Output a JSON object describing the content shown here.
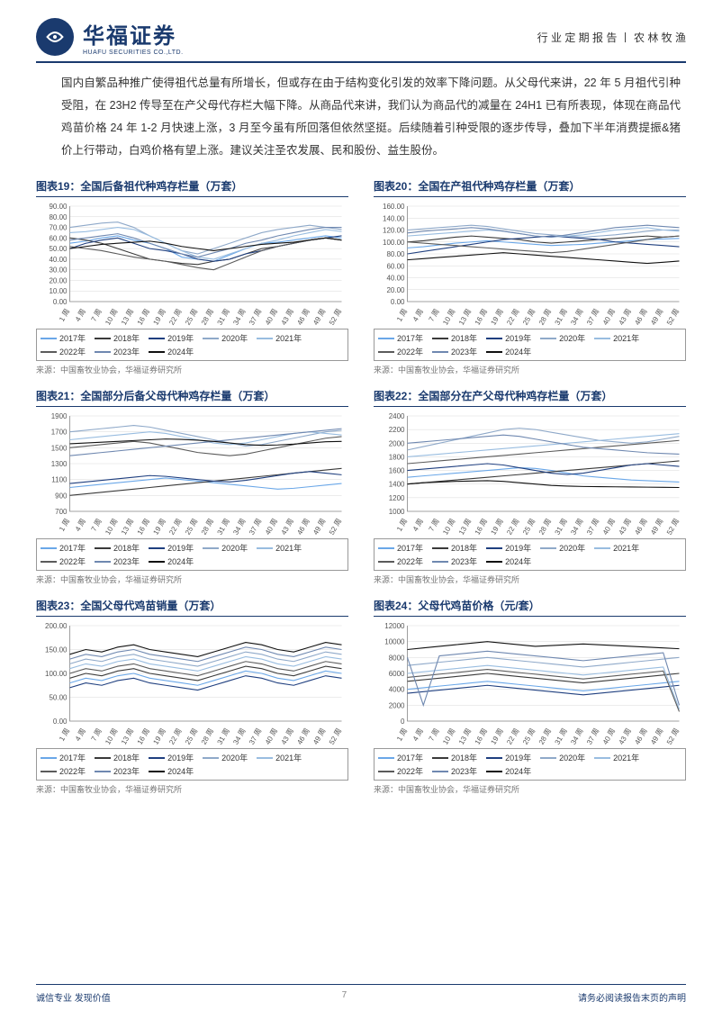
{
  "header": {
    "logo_cn": "华福证券",
    "logo_en": "HUAFU SECURITIES CO.,LTD.",
    "right": "行 业 定 期 报 告  丨  农 林 牧 渔"
  },
  "intro": "国内自繁品种推广使得祖代总量有所增长，但或存在由于结构变化引发的效率下降问题。从父母代来讲，22 年 5 月祖代引种受阻，在 23H2 传导至在产父母代存栏大幅下降。从商品代来讲，我们认为商品代的减量在 24H1 已有所表现，体现在商品代鸡苗价格 24 年 1-2 月快速上涨，3 月至今虽有所回落但依然坚挺。后续随着引种受限的逐步传导，叠加下半年消费提振&猪价上行带动，白鸡价格有望上涨。建议关注圣农发展、民和股份、益生股份。",
  "legend_years": [
    "2017年",
    "2018年",
    "2019年",
    "2020年",
    "2021年",
    "2022年",
    "2023年",
    "2024年"
  ],
  "legend_colors": [
    "#6aa7e8",
    "#3a3a3a",
    "#1f3f7f",
    "#8fa9c9",
    "#99bde0",
    "#5b5b5b",
    "#6f88b0",
    "#111111"
  ],
  "x_ticks": [
    "1 周",
    "4 周",
    "7 周",
    "10 周",
    "13 周",
    "16 周",
    "19 周",
    "22 周",
    "25 周",
    "28 周",
    "31 周",
    "34 周",
    "37 周",
    "40 周",
    "43 周",
    "46 周",
    "49 周",
    "52 周"
  ],
  "source_text": "来源：中国畜牧业协会，华福证券研究所",
  "charts": [
    {
      "title": "图表19：全国后备祖代种鸡存栏量（万套）",
      "ymin": 0,
      "ymax": 90,
      "ystep": 10,
      "series": [
        [
          55,
          57,
          60,
          62,
          58,
          55,
          50,
          42,
          40,
          38,
          44,
          50,
          55,
          56,
          58,
          60,
          62,
          60
        ],
        [
          60,
          58,
          55,
          50,
          45,
          40,
          38,
          36,
          35,
          38,
          40,
          45,
          50,
          52,
          55,
          58,
          60,
          58
        ],
        [
          50,
          55,
          58,
          60,
          55,
          50,
          48,
          45,
          40,
          38,
          40,
          45,
          48,
          52,
          55,
          58,
          60,
          62
        ],
        [
          70,
          72,
          74,
          75,
          70,
          62,
          55,
          48,
          45,
          50,
          55,
          60,
          65,
          68,
          70,
          72,
          70,
          68
        ],
        [
          65,
          66,
          68,
          70,
          68,
          62,
          55,
          48,
          42,
          40,
          45,
          50,
          55,
          58,
          62,
          65,
          68,
          66
        ],
        [
          52,
          50,
          48,
          45,
          42,
          40,
          38,
          35,
          32,
          30,
          36,
          42,
          48,
          52,
          55,
          58,
          60,
          58
        ],
        [
          58,
          60,
          62,
          64,
          60,
          55,
          50,
          45,
          42,
          46,
          50,
          55,
          58,
          62,
          65,
          68,
          70,
          70
        ],
        [
          50,
          52,
          54,
          55,
          56,
          57,
          55,
          52,
          50,
          48,
          50,
          52,
          54,
          55,
          56,
          58,
          60,
          58
        ]
      ]
    },
    {
      "title": "图表20：全国在产祖代种鸡存栏量（万套）",
      "ymin": 0,
      "ymax": 160,
      "ystep": 20,
      "series": [
        [
          90,
          92,
          95,
          98,
          100,
          102,
          100,
          98,
          96,
          94,
          95,
          96,
          98,
          100,
          102,
          104,
          105,
          106
        ],
        [
          100,
          102,
          105,
          108,
          110,
          108,
          106,
          104,
          100,
          98,
          100,
          102,
          104,
          106,
          108,
          110,
          108,
          110
        ],
        [
          80,
          84,
          88,
          92,
          96,
          100,
          104,
          106,
          108,
          110,
          108,
          106,
          104,
          100,
          98,
          96,
          94,
          92
        ],
        [
          120,
          122,
          124,
          126,
          128,
          126,
          122,
          118,
          114,
          112,
          110,
          108,
          110,
          112,
          115,
          118,
          120,
          120
        ],
        [
          110,
          112,
          114,
          116,
          118,
          120,
          118,
          114,
          110,
          108,
          110,
          112,
          116,
          120,
          122,
          124,
          120,
          118
        ],
        [
          100,
          98,
          96,
          94,
          92,
          90,
          88,
          86,
          84,
          82,
          84,
          88,
          92,
          96,
          100,
          104,
          108,
          110
        ],
        [
          115,
          118,
          120,
          122,
          124,
          122,
          118,
          114,
          110,
          108,
          112,
          116,
          120,
          124,
          126,
          128,
          126,
          124
        ],
        [
          70,
          72,
          74,
          76,
          78,
          80,
          82,
          80,
          78,
          76,
          74,
          72,
          70,
          68,
          66,
          64,
          66,
          68
        ]
      ]
    },
    {
      "title": "图表21：全国部分后备父母代种鸡存栏量（万套）",
      "ymin": 700,
      "ymax": 1900,
      "ystep": 200,
      "series": [
        [
          1000,
          1020,
          1040,
          1060,
          1080,
          1100,
          1120,
          1100,
          1080,
          1060,
          1040,
          1020,
          1000,
          980,
          990,
          1010,
          1030,
          1050
        ],
        [
          900,
          920,
          940,
          960,
          980,
          1000,
          1020,
          1040,
          1060,
          1080,
          1100,
          1120,
          1140,
          1160,
          1180,
          1200,
          1220,
          1240
        ],
        [
          1050,
          1070,
          1090,
          1110,
          1130,
          1150,
          1140,
          1120,
          1100,
          1080,
          1070,
          1090,
          1120,
          1150,
          1180,
          1200,
          1180,
          1160
        ],
        [
          1700,
          1720,
          1740,
          1760,
          1780,
          1760,
          1720,
          1680,
          1640,
          1600,
          1560,
          1520,
          1540,
          1580,
          1620,
          1660,
          1700,
          1720
        ],
        [
          1600,
          1620,
          1640,
          1660,
          1680,
          1700,
          1680,
          1640,
          1600,
          1560,
          1540,
          1560,
          1600,
          1640,
          1680,
          1700,
          1680,
          1660
        ],
        [
          1500,
          1520,
          1540,
          1560,
          1580,
          1560,
          1520,
          1480,
          1440,
          1420,
          1400,
          1420,
          1460,
          1500,
          1540,
          1580,
          1620,
          1640
        ],
        [
          1400,
          1420,
          1440,
          1460,
          1480,
          1500,
          1520,
          1540,
          1560,
          1580,
          1600,
          1620,
          1640,
          1660,
          1680,
          1700,
          1720,
          1740
        ],
        [
          1550,
          1560,
          1570,
          1580,
          1590,
          1600,
          1610,
          1605,
          1595,
          1580,
          1560,
          1540,
          1530,
          1535,
          1545,
          1560,
          1575,
          1580
        ]
      ]
    },
    {
      "title": "图表22：全国部分在产父母代种鸡存栏量（万套）",
      "ymin": 1000,
      "ymax": 2400,
      "ystep": 200,
      "series": [
        [
          1500,
          1520,
          1540,
          1560,
          1580,
          1600,
          1620,
          1640,
          1630,
          1600,
          1560,
          1520,
          1500,
          1480,
          1460,
          1450,
          1440,
          1430
        ],
        [
          1400,
          1420,
          1440,
          1460,
          1480,
          1500,
          1520,
          1540,
          1560,
          1580,
          1600,
          1620,
          1640,
          1660,
          1680,
          1700,
          1720,
          1740
        ],
        [
          1600,
          1620,
          1640,
          1660,
          1680,
          1700,
          1680,
          1640,
          1600,
          1560,
          1540,
          1560,
          1600,
          1640,
          1680,
          1700,
          1680,
          1660
        ],
        [
          1900,
          1950,
          2000,
          2050,
          2100,
          2150,
          2200,
          2220,
          2200,
          2160,
          2120,
          2080,
          2040,
          2020,
          2000,
          2020,
          2060,
          2100
        ],
        [
          1800,
          1820,
          1840,
          1860,
          1880,
          1900,
          1920,
          1940,
          1960,
          1980,
          2000,
          2020,
          2040,
          2060,
          2080,
          2100,
          2120,
          2140
        ],
        [
          1700,
          1720,
          1740,
          1760,
          1780,
          1800,
          1820,
          1840,
          1860,
          1880,
          1900,
          1920,
          1940,
          1960,
          1980,
          2000,
          2020,
          2040
        ],
        [
          2000,
          2020,
          2040,
          2060,
          2080,
          2100,
          2120,
          2100,
          2060,
          2020,
          1980,
          1940,
          1920,
          1900,
          1880,
          1860,
          1850,
          1840
        ],
        [
          1400,
          1420,
          1430,
          1440,
          1445,
          1450,
          1440,
          1420,
          1400,
          1380,
          1370,
          1365,
          1362,
          1360,
          1358,
          1355,
          1352,
          1350
        ]
      ]
    },
    {
      "title": "图表23：全国父母代鸡苗销量（万套）",
      "ymin": 0,
      "ymax": 200,
      "ystep": 50,
      "series": [
        [
          80,
          90,
          85,
          95,
          100,
          90,
          85,
          80,
          75,
          85,
          95,
          105,
          100,
          90,
          85,
          95,
          105,
          100
        ],
        [
          90,
          100,
          95,
          105,
          110,
          100,
          95,
          90,
          85,
          95,
          105,
          115,
          110,
          100,
          95,
          105,
          115,
          110
        ],
        [
          70,
          80,
          75,
          85,
          90,
          80,
          75,
          70,
          65,
          75,
          85,
          95,
          90,
          80,
          75,
          85,
          95,
          90
        ],
        [
          120,
          130,
          125,
          135,
          140,
          130,
          125,
          120,
          115,
          125,
          135,
          145,
          140,
          130,
          125,
          135,
          145,
          140
        ],
        [
          110,
          120,
          115,
          125,
          130,
          120,
          115,
          110,
          105,
          115,
          125,
          135,
          130,
          120,
          115,
          125,
          135,
          130
        ],
        [
          100,
          110,
          105,
          115,
          120,
          110,
          105,
          100,
          95,
          105,
          115,
          125,
          120,
          110,
          105,
          115,
          125,
          120
        ],
        [
          130,
          140,
          135,
          145,
          150,
          140,
          135,
          130,
          125,
          135,
          145,
          155,
          150,
          140,
          135,
          145,
          155,
          150
        ],
        [
          140,
          150,
          145,
          155,
          160,
          150,
          145,
          140,
          135,
          145,
          155,
          165,
          160,
          150,
          145,
          155,
          165,
          160
        ]
      ]
    },
    {
      "title": "图表24：父母代鸡苗价格（元/套）",
      "ymin": 0,
      "ymax": 12000,
      "ystep": 2000,
      "series": [
        [
          4000,
          4200,
          4400,
          4600,
          4800,
          5000,
          4800,
          4600,
          4400,
          4200,
          4000,
          3800,
          4000,
          4200,
          4400,
          4600,
          4800,
          5000
        ],
        [
          5000,
          5200,
          5400,
          5600,
          5800,
          6000,
          5800,
          5600,
          5400,
          5200,
          5000,
          4800,
          5000,
          5200,
          5400,
          5600,
          5800,
          6000
        ],
        [
          3500,
          3700,
          3900,
          4100,
          4300,
          4500,
          4300,
          4100,
          3900,
          3700,
          3500,
          3300,
          3500,
          3700,
          3900,
          4100,
          4300,
          4500
        ],
        [
          7000,
          7200,
          7400,
          7600,
          7800,
          8000,
          7800,
          7600,
          7400,
          7200,
          7000,
          6800,
          7000,
          7200,
          7400,
          7600,
          7800,
          8000
        ],
        [
          6000,
          6200,
          6400,
          6600,
          6800,
          7000,
          6800,
          6600,
          6400,
          6200,
          6000,
          5800,
          6000,
          6200,
          6400,
          6600,
          6800,
          1500
        ],
        [
          5500,
          5700,
          5900,
          6100,
          6300,
          6500,
          6300,
          6100,
          5900,
          5700,
          5500,
          5300,
          5500,
          5700,
          5900,
          6100,
          6300,
          1200
        ],
        [
          8000,
          2000,
          8200,
          8400,
          8600,
          8800,
          8600,
          8400,
          8200,
          8000,
          7800,
          7600,
          7800,
          8000,
          8200,
          8400,
          8600,
          2000
        ],
        [
          9000,
          9200,
          9400,
          9600,
          9800,
          10000,
          9800,
          9600,
          9400,
          9500,
          9600,
          9700,
          9600,
          9500,
          9400,
          9300,
          9200,
          9100
        ]
      ]
    }
  ],
  "footer": {
    "left": "诚信专业   发现价值",
    "page": "7",
    "right": "请务必阅读报告末页的声明"
  },
  "chart_style": {
    "plot_bg": "#ffffff",
    "grid_color": "#d9d9d9",
    "axis_color": "#888888",
    "tick_fontsize": 8,
    "line_width": 1.1
  }
}
